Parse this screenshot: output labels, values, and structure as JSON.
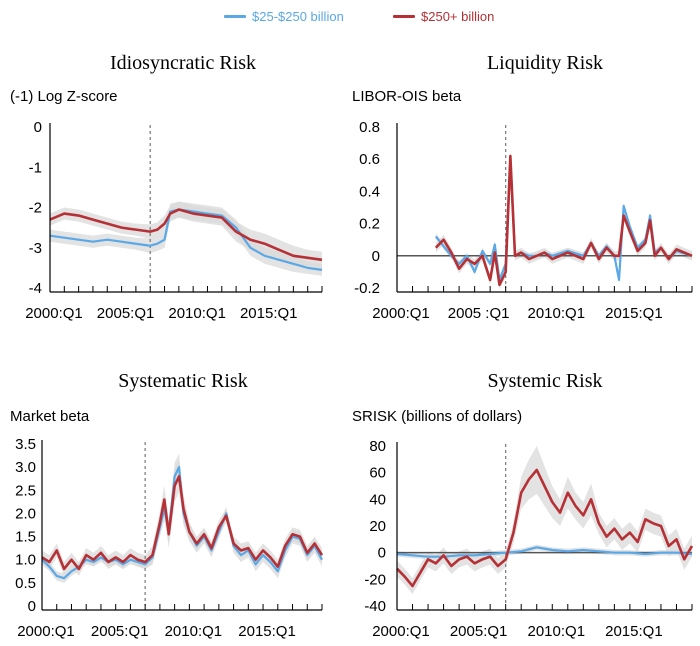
{
  "legend": [
    {
      "label": "$25-$250 billion",
      "color": "#5ba8e6"
    },
    {
      "label": "$250+ billion",
      "color": "#b53136"
    }
  ],
  "colors": {
    "band": "#d9d9d9",
    "axis": "#000000",
    "crisis_line": "#777777",
    "zero_line": "#555555"
  },
  "chart_data": [
    {
      "type": "line",
      "title": "Idiosyncratic Risk",
      "ylabel": "(-1) Log Z-score",
      "ylim": [
        -4,
        0
      ],
      "yticks": [
        0,
        -1,
        -2,
        -3,
        -4
      ],
      "ytick_labels": [
        "0",
        "-1",
        "-2",
        "-3",
        "-4"
      ],
      "xticks": [
        2000,
        2005,
        2010,
        2015
      ],
      "xtick_labels": [
        "2000:Q1",
        "2005:Q1",
        "2010:Q1",
        "2015:Q1"
      ],
      "xlim": [
        2000,
        2019
      ],
      "crisis_x": 2007.0,
      "zero_line": false,
      "series": [
        {
          "name": "$25-$250 billion",
          "x": [
            2000,
            2001,
            2002,
            2003,
            2004,
            2005,
            2006,
            2007,
            2007.5,
            2008,
            2008.4,
            2009,
            2010,
            2011,
            2012,
            2013,
            2014,
            2015,
            2016,
            2017,
            2018,
            2019
          ],
          "values": [
            -2.7,
            -2.75,
            -2.8,
            -2.85,
            -2.8,
            -2.85,
            -2.9,
            -2.95,
            -2.9,
            -2.8,
            -2.1,
            -2.05,
            -2.1,
            -2.15,
            -2.2,
            -2.5,
            -3.0,
            -3.2,
            -3.3,
            -3.4,
            -3.5,
            -3.55
          ],
          "band": [
            0.15,
            0.15,
            0.15,
            0.15,
            0.15,
            0.15,
            0.15,
            0.18,
            0.18,
            0.2,
            0.2,
            0.2,
            0.2,
            0.2,
            0.2,
            0.2,
            0.2,
            0.2,
            0.2,
            0.2,
            0.15,
            0.15
          ]
        },
        {
          "name": "$250+ billion",
          "x": [
            2000,
            2001,
            2002,
            2003,
            2004,
            2005,
            2006,
            2007,
            2007.5,
            2008,
            2008.4,
            2009,
            2010,
            2011,
            2012,
            2013,
            2014,
            2015,
            2016,
            2017,
            2018,
            2019
          ],
          "values": [
            -2.3,
            -2.15,
            -2.2,
            -2.3,
            -2.4,
            -2.5,
            -2.55,
            -2.6,
            -2.55,
            -2.4,
            -2.15,
            -2.05,
            -2.15,
            -2.2,
            -2.25,
            -2.6,
            -2.8,
            -2.9,
            -3.05,
            -3.2,
            -3.25,
            -3.3
          ],
          "band": [
            0.15,
            0.15,
            0.15,
            0.15,
            0.15,
            0.15,
            0.15,
            0.18,
            0.18,
            0.2,
            0.2,
            0.2,
            0.2,
            0.2,
            0.2,
            0.25,
            0.25,
            0.25,
            0.25,
            0.25,
            0.2,
            0.2
          ]
        }
      ]
    },
    {
      "type": "line",
      "title": "Liquidity Risk",
      "ylabel": "LIBOR-OIS beta",
      "ylim": [
        -0.2,
        0.8
      ],
      "yticks": [
        0.8,
        0.6,
        0.4,
        0.2,
        0,
        -0.2
      ],
      "ytick_labels": [
        "0.8",
        "0.6",
        "0.4",
        "0.2",
        "0",
        "-0.2"
      ],
      "xticks": [
        2000,
        2005,
        2010,
        2015
      ],
      "xtick_labels": [
        "2000:Q1",
        "2005 :Q1",
        "2010:Q1",
        "2015:Q1"
      ],
      "xlim": [
        2000,
        2019
      ],
      "crisis_x": 2007.0,
      "zero_line": true,
      "series": [
        {
          "name": "$25-$250 billion",
          "x": [
            2002.5,
            2003,
            2003.5,
            2004,
            2004.5,
            2005,
            2005.5,
            2006,
            2006.3,
            2006.6,
            2007,
            2007.3,
            2007.6,
            2008,
            2008.5,
            2009,
            2009.5,
            2010,
            2011,
            2012,
            2012.5,
            2013,
            2013.5,
            2014,
            2014.3,
            2014.6,
            2015,
            2015.5,
            2016,
            2016.3,
            2016.6,
            2017,
            2017.5,
            2018,
            2019
          ],
          "values": [
            0.12,
            0.06,
            0.0,
            -0.05,
            0.0,
            -0.1,
            0.03,
            -0.05,
            0.07,
            -0.15,
            -0.05,
            0.6,
            0.0,
            0.02,
            0.0,
            0.0,
            0.02,
            0.0,
            0.03,
            0.0,
            0.08,
            0.0,
            0.06,
            0.0,
            -0.15,
            0.31,
            0.18,
            0.05,
            0.1,
            0.25,
            0.02,
            0.05,
            -0.02,
            0.03,
            0.0
          ],
          "band": [
            0.02,
            0.02,
            0.02,
            0.02,
            0.02,
            0.02,
            0.02,
            0.02,
            0.02,
            0.02,
            0.02,
            0.02,
            0.02,
            0.02,
            0.02,
            0.02,
            0.02,
            0.02,
            0.02,
            0.02,
            0.02,
            0.02,
            0.02,
            0.02,
            0.02,
            0.02,
            0.02,
            0.02,
            0.02,
            0.02,
            0.02,
            0.02,
            0.02,
            0.02,
            0.02
          ]
        },
        {
          "name": "$250+ billion",
          "x": [
            2002.5,
            2003,
            2003.5,
            2004,
            2004.5,
            2005,
            2005.5,
            2006,
            2006.3,
            2006.6,
            2007,
            2007.3,
            2007.6,
            2008,
            2008.5,
            2009,
            2009.5,
            2010,
            2011,
            2012,
            2012.5,
            2013,
            2013.5,
            2014,
            2014.3,
            2014.6,
            2015,
            2015.5,
            2016,
            2016.3,
            2016.6,
            2017,
            2017.5,
            2018,
            2019
          ],
          "values": [
            0.05,
            0.1,
            0.02,
            -0.08,
            -0.02,
            -0.05,
            0.0,
            -0.15,
            0.02,
            -0.18,
            -0.1,
            0.62,
            0.0,
            0.02,
            -0.02,
            0.0,
            0.02,
            -0.02,
            0.02,
            -0.02,
            0.08,
            -0.02,
            0.05,
            0.0,
            0.0,
            0.25,
            0.15,
            0.03,
            0.08,
            0.22,
            0.0,
            0.05,
            -0.02,
            0.04,
            0.0
          ],
          "band": [
            0.03,
            0.03,
            0.03,
            0.03,
            0.03,
            0.03,
            0.03,
            0.03,
            0.03,
            0.03,
            0.03,
            0.03,
            0.03,
            0.03,
            0.03,
            0.03,
            0.03,
            0.03,
            0.03,
            0.03,
            0.03,
            0.03,
            0.03,
            0.03,
            0.03,
            0.03,
            0.03,
            0.03,
            0.03,
            0.03,
            0.03,
            0.03,
            0.03,
            0.03,
            0.03
          ]
        }
      ]
    },
    {
      "type": "line",
      "title": "Systematic Risk",
      "ylabel": "Market beta",
      "ylim": [
        0,
        3.5
      ],
      "yticks": [
        3.5,
        3.0,
        2.5,
        2.0,
        1.5,
        1.0,
        0.5,
        0
      ],
      "ytick_labels": [
        "3.5",
        "3.0",
        "2.5",
        "2.0",
        "1.5",
        "1.0",
        "0.5",
        "0"
      ],
      "xticks": [
        2000,
        2005,
        2010,
        2015
      ],
      "xtick_labels": [
        "2000:Q1",
        "2005:Q1",
        "2010:Q1",
        "2015:Q1"
      ],
      "xlim": [
        2000,
        2019
      ],
      "crisis_x": 2007.0,
      "zero_line": false,
      "series": [
        {
          "name": "$25-$250 billion",
          "x": [
            2000,
            2000.5,
            2001,
            2001.5,
            2002,
            2002.5,
            2003,
            2003.5,
            2004,
            2004.5,
            2005,
            2005.5,
            2006,
            2006.5,
            2007,
            2007.5,
            2008,
            2008.3,
            2008.6,
            2009,
            2009.3,
            2009.6,
            2010,
            2010.5,
            2011,
            2011.5,
            2012,
            2012.5,
            2013,
            2013.5,
            2014,
            2014.5,
            2015,
            2015.5,
            2016,
            2016.5,
            2017,
            2017.5,
            2018,
            2018.5,
            2019
          ],
          "values": [
            1.0,
            0.85,
            0.65,
            0.6,
            0.75,
            0.85,
            1.0,
            0.95,
            1.05,
            0.95,
            1.0,
            0.9,
            1.0,
            0.95,
            0.9,
            1.05,
            1.7,
            2.1,
            1.6,
            2.8,
            3.0,
            2.0,
            1.6,
            1.3,
            1.5,
            1.2,
            1.6,
            2.0,
            1.3,
            1.1,
            1.2,
            0.9,
            1.1,
            0.95,
            0.75,
            1.2,
            1.5,
            1.45,
            1.1,
            1.3,
            1.0
          ],
          "band": [
            0.1,
            0.1,
            0.1,
            0.1,
            0.1,
            0.1,
            0.1,
            0.1,
            0.1,
            0.1,
            0.1,
            0.1,
            0.1,
            0.1,
            0.1,
            0.15,
            0.2,
            0.25,
            0.25,
            0.3,
            0.3,
            0.25,
            0.2,
            0.15,
            0.15,
            0.15,
            0.15,
            0.15,
            0.15,
            0.15,
            0.15,
            0.15,
            0.15,
            0.15,
            0.15,
            0.15,
            0.15,
            0.15,
            0.15,
            0.15,
            0.15
          ]
        },
        {
          "name": "$250+ billion",
          "x": [
            2000,
            2000.5,
            2001,
            2001.5,
            2002,
            2002.5,
            2003,
            2003.5,
            2004,
            2004.5,
            2005,
            2005.5,
            2006,
            2006.5,
            2007,
            2007.5,
            2008,
            2008.3,
            2008.6,
            2009,
            2009.3,
            2009.6,
            2010,
            2010.5,
            2011,
            2011.5,
            2012,
            2012.5,
            2013,
            2013.5,
            2014,
            2014.5,
            2015,
            2015.5,
            2016,
            2016.5,
            2017,
            2017.5,
            2018,
            2018.5,
            2019
          ],
          "values": [
            1.05,
            0.95,
            1.2,
            0.8,
            1.0,
            0.8,
            1.1,
            1.0,
            1.15,
            0.95,
            1.05,
            0.95,
            1.1,
            1.0,
            0.95,
            1.1,
            1.8,
            2.3,
            1.55,
            2.6,
            2.8,
            2.1,
            1.6,
            1.35,
            1.55,
            1.25,
            1.7,
            1.95,
            1.35,
            1.2,
            1.25,
            1.0,
            1.2,
            1.05,
            0.85,
            1.3,
            1.55,
            1.5,
            1.15,
            1.35,
            1.1
          ],
          "band": [
            0.15,
            0.15,
            0.15,
            0.15,
            0.15,
            0.15,
            0.15,
            0.15,
            0.15,
            0.15,
            0.15,
            0.15,
            0.15,
            0.15,
            0.15,
            0.2,
            0.25,
            0.3,
            0.3,
            0.35,
            0.35,
            0.3,
            0.2,
            0.15,
            0.15,
            0.15,
            0.15,
            0.15,
            0.15,
            0.15,
            0.15,
            0.15,
            0.15,
            0.15,
            0.15,
            0.15,
            0.15,
            0.15,
            0.15,
            0.15,
            0.15
          ]
        }
      ]
    },
    {
      "type": "line",
      "title": "Systemic Risk",
      "ylabel": "SRISK (billions of dollars)",
      "ylim": [
        -40,
        80
      ],
      "yticks": [
        80,
        60,
        40,
        20,
        0,
        -20,
        -40
      ],
      "ytick_labels": [
        "80",
        "60",
        "40",
        "20",
        "0",
        "-20",
        "-40"
      ],
      "xticks": [
        2000,
        2005,
        2010,
        2015
      ],
      "xtick_labels": [
        "2000:Q1",
        "2005:Q1",
        "2010:Q1",
        "2015:Q1"
      ],
      "xlim": [
        2000,
        2019
      ],
      "crisis_x": 2007.0,
      "zero_line": true,
      "series": [
        {
          "name": "$25-$250 billion",
          "x": [
            2000,
            2001,
            2002,
            2003,
            2004,
            2005,
            2006,
            2007,
            2008,
            2009,
            2010,
            2011,
            2012,
            2013,
            2014,
            2015,
            2016,
            2017,
            2018,
            2019
          ],
          "values": [
            -1,
            -2,
            -3,
            -3,
            -2,
            -2,
            -1,
            0,
            1,
            4,
            2,
            1,
            2,
            1,
            0,
            0,
            -1,
            0,
            0,
            -1
          ],
          "band": [
            2,
            2,
            2,
            2,
            2,
            2,
            2,
            2,
            2,
            2,
            2,
            2,
            2,
            2,
            2,
            2,
            2,
            2,
            2,
            2
          ]
        },
        {
          "name": "$250+ billion",
          "x": [
            2000,
            2000.5,
            2001,
            2001.5,
            2002,
            2002.5,
            2003,
            2003.5,
            2004,
            2004.5,
            2005,
            2005.5,
            2006,
            2006.5,
            2007,
            2007.5,
            2008,
            2008.5,
            2009,
            2009.5,
            2010,
            2010.5,
            2011,
            2011.5,
            2012,
            2012.5,
            2013,
            2013.5,
            2014,
            2014.5,
            2015,
            2015.5,
            2016,
            2016.5,
            2017,
            2017.5,
            2018,
            2018.5,
            2019
          ],
          "values": [
            -12,
            -18,
            -25,
            -15,
            -5,
            -8,
            -2,
            -10,
            -5,
            -3,
            -8,
            -5,
            -3,
            -10,
            -5,
            15,
            45,
            55,
            62,
            50,
            38,
            30,
            45,
            35,
            28,
            40,
            22,
            12,
            18,
            10,
            15,
            8,
            25,
            22,
            20,
            5,
            10,
            -5,
            5
          ],
          "band": [
            6,
            6,
            6,
            6,
            6,
            6,
            6,
            6,
            6,
            6,
            6,
            6,
            6,
            6,
            6,
            8,
            12,
            15,
            18,
            15,
            12,
            10,
            12,
            10,
            10,
            12,
            8,
            8,
            8,
            8,
            8,
            8,
            8,
            8,
            8,
            8,
            8,
            8,
            8
          ]
        }
      ]
    }
  ]
}
